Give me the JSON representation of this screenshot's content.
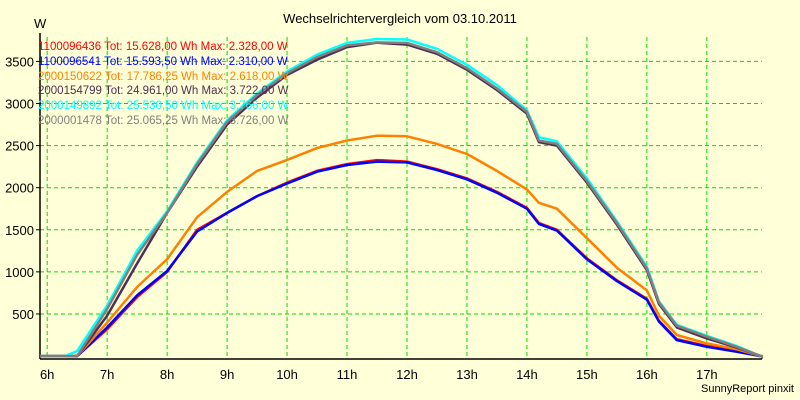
{
  "chart_data": {
    "type": "line",
    "title": "Wechselrichtervergleich vom 03.10.2011",
    "ylabel": "W",
    "xlabel": "",
    "xlim": [
      5.88,
      17.92
    ],
    "ylim": [
      -35,
      3790
    ],
    "grid": true,
    "legend_position": "top-left",
    "x_ticks": [
      6,
      7,
      8,
      9,
      10,
      11,
      12,
      13,
      14,
      15,
      16,
      17
    ],
    "x_tick_labels": [
      "6h",
      "7h",
      "8h",
      "9h",
      "10h",
      "11h",
      "12h",
      "13h",
      "14h",
      "15h",
      "16h",
      "17h"
    ],
    "y_ticks": [
      500,
      1000,
      1500,
      2000,
      2500,
      3000,
      3500
    ],
    "y_tick_labels": [
      "500",
      "1000",
      "1500",
      "2000",
      "2500",
      "3000",
      "3500"
    ],
    "series": [
      {
        "name": "1100096436",
        "tot": "Tot: 15.628,00 Wh",
        "max": "Max: 2.328,00 W",
        "color": "#ff0000",
        "x": [
          6.4,
          6.5,
          7,
          7.5,
          8,
          8.5,
          9,
          9.5,
          10,
          10.5,
          11,
          11.5,
          12,
          12.5,
          13,
          13.5,
          14,
          14.2,
          14.5,
          15,
          15.5,
          16,
          16.2,
          16.5,
          17,
          17.5,
          17.9
        ],
        "y": [
          0,
          0,
          320,
          700,
          1000,
          1500,
          1700,
          1900,
          2060,
          2200,
          2280,
          2328,
          2310,
          2220,
          2110,
          1950,
          1760,
          1580,
          1500,
          1160,
          900,
          680,
          420,
          200,
          120,
          60,
          0
        ]
      },
      {
        "name": "1100096541",
        "tot": "Tot: 15.593,50 Wh",
        "max": "Max: 2.310,00 W",
        "color": "#0000ff",
        "x": [
          6.4,
          6.5,
          7,
          7.5,
          8,
          8.5,
          9,
          9.5,
          10,
          10.5,
          11,
          11.5,
          12,
          12.5,
          13,
          13.5,
          14,
          14.2,
          14.5,
          15,
          15.5,
          16,
          16.2,
          16.5,
          17,
          17.5,
          17.9
        ],
        "y": [
          0,
          0,
          340,
          720,
          1010,
          1480,
          1700,
          1900,
          2050,
          2190,
          2270,
          2310,
          2300,
          2210,
          2100,
          1940,
          1750,
          1570,
          1490,
          1150,
          890,
          670,
          410,
          190,
          110,
          50,
          0
        ]
      },
      {
        "name": "2000150622",
        "tot": "Tot: 17.786,25 Wh",
        "max": "Max: 2.618,00 W",
        "color": "#ff8000",
        "x": [
          6.4,
          6.5,
          7,
          7.5,
          8,
          8.5,
          9,
          9.5,
          10,
          10.5,
          11,
          11.5,
          12,
          12.5,
          13,
          13.5,
          14,
          14.2,
          14.5,
          15,
          15.5,
          16,
          16.2,
          16.5,
          17,
          17.5,
          17.9
        ],
        "y": [
          0,
          0,
          400,
          820,
          1150,
          1650,
          1950,
          2200,
          2330,
          2470,
          2560,
          2618,
          2610,
          2520,
          2400,
          2200,
          1980,
          1820,
          1750,
          1400,
          1050,
          780,
          480,
          250,
          150,
          80,
          0
        ]
      },
      {
        "name": "2000154799",
        "tot": "Tot: 24.961,00 Wh",
        "max": "Max: 3.722,00 W",
        "color": "#503050",
        "x": [
          6.4,
          6.5,
          7,
          7.5,
          8,
          8.5,
          9,
          9.5,
          10,
          10.5,
          11,
          11.5,
          12,
          12.5,
          13,
          13.5,
          14,
          14.2,
          14.5,
          15,
          15.5,
          16,
          16.2,
          16.5,
          17,
          17.5,
          17.9
        ],
        "y": [
          0,
          0,
          480,
          1100,
          1700,
          2250,
          2750,
          3070,
          3340,
          3520,
          3670,
          3722,
          3700,
          3590,
          3400,
          3160,
          2880,
          2540,
          2500,
          2060,
          1560,
          1020,
          620,
          340,
          210,
          100,
          0
        ]
      },
      {
        "name": "2000149892",
        "tot": "Tot: 25.530,50 Wh",
        "max": "Max: 3.766,00 W",
        "color": "#00ffff",
        "x": [
          6.3,
          6.5,
          7,
          7.5,
          8,
          8.5,
          9,
          9.5,
          10,
          10.5,
          11,
          11.5,
          12,
          12.5,
          13,
          13.5,
          14,
          14.2,
          14.5,
          15,
          15.5,
          16,
          16.2,
          16.5,
          17,
          17.5,
          17.9
        ],
        "y": [
          0,
          60,
          600,
          1250,
          1720,
          2300,
          2800,
          3120,
          3380,
          3580,
          3720,
          3766,
          3760,
          3650,
          3460,
          3220,
          2920,
          2600,
          2550,
          2110,
          1600,
          1060,
          650,
          370,
          240,
          120,
          0
        ]
      },
      {
        "name": "2000001478",
        "tot": "Tot: 25.065,25 Wh",
        "max": "Max: 3.726,00 W",
        "color": "#808080",
        "x": [
          6.4,
          6.5,
          7,
          7.5,
          8,
          8.5,
          9,
          9.5,
          10,
          10.5,
          11,
          11.5,
          12,
          12.5,
          13,
          13.5,
          14,
          14.2,
          14.5,
          15,
          15.5,
          16,
          16.2,
          16.5,
          17,
          17.5,
          17.9
        ],
        "y": [
          0,
          0,
          560,
          1200,
          1700,
          2280,
          2780,
          3100,
          3360,
          3550,
          3690,
          3726,
          3720,
          3610,
          3420,
          3180,
          2900,
          2560,
          2520,
          2080,
          1580,
          1040,
          640,
          360,
          230,
          110,
          0
        ]
      }
    ]
  },
  "footer": "SunnyReport pinxit"
}
